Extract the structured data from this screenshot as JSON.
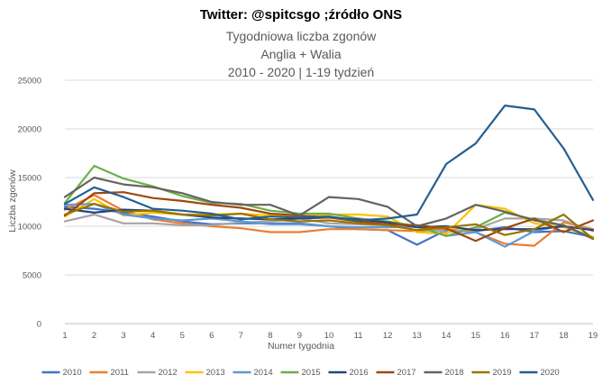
{
  "chart_data": {
    "type": "line",
    "header": "Twitter: @spitcsgo ;źródło ONS",
    "title_lines": [
      "Tygodniowa liczba zgonów",
      "Anglia + Walia",
      "2010 - 2020 | 1-19 tydzień"
    ],
    "xlabel": "Numer tygodnia",
    "ylabel": "Liczba zgonów",
    "x": [
      1,
      2,
      3,
      4,
      5,
      6,
      7,
      8,
      9,
      10,
      11,
      12,
      13,
      14,
      15,
      16,
      17,
      18,
      19
    ],
    "ylim": [
      0,
      25000
    ],
    "yticks": [
      0,
      5000,
      10000,
      15000,
      20000,
      25000
    ],
    "grid": true,
    "legend_position": "bottom",
    "series": [
      {
        "name": "2010",
        "color": "#4472c4",
        "values": [
          12000,
          11800,
          11400,
          11000,
          10500,
          10200,
          10300,
          10300,
          10300,
          10000,
          9700,
          9600,
          8100,
          9600,
          9500,
          9900,
          9400,
          9500,
          8900
        ]
      },
      {
        "name": "2011",
        "color": "#ed7d31",
        "values": [
          11700,
          13200,
          11600,
          10700,
          10300,
          10000,
          9800,
          9400,
          9400,
          9700,
          9700,
          9600,
          9500,
          9700,
          9400,
          8200,
          8000,
          10400,
          9700
        ]
      },
      {
        "name": "2012",
        "color": "#a5a5a5",
        "values": [
          10500,
          11200,
          10300,
          10300,
          10100,
          10100,
          10400,
          10500,
          10800,
          10300,
          10200,
          10100,
          9900,
          9400,
          9700,
          10800,
          10800,
          10600,
          9500
        ]
      },
      {
        "name": "2013",
        "color": "#ffc000",
        "values": [
          11000,
          12800,
          11100,
          11400,
          11200,
          11200,
          11300,
          11100,
          11000,
          11200,
          11200,
          11000,
          9400,
          9200,
          12200,
          11800,
          10300,
          9900,
          8900
        ]
      },
      {
        "name": "2014",
        "color": "#5b9bd5",
        "values": [
          12200,
          12300,
          11200,
          10800,
          10600,
          10800,
          10500,
          10200,
          10200,
          10000,
          9900,
          9900,
          10000,
          9000,
          9400,
          7900,
          9500,
          10100,
          8800
        ]
      },
      {
        "name": "2015",
        "color": "#70ad47",
        "values": [
          12400,
          16200,
          14900,
          14100,
          13100,
          12400,
          12300,
          11600,
          11300,
          11300,
          10800,
          10500,
          10000,
          9000,
          9900,
          11400,
          10700,
          10100,
          8800
        ]
      },
      {
        "name": "2016",
        "color": "#264478",
        "values": [
          11800,
          11400,
          11700,
          11600,
          11200,
          10900,
          10800,
          10700,
          10800,
          10900,
          10700,
          10400,
          9900,
          10000,
          9600,
          9700,
          9700,
          10000,
          9600
        ]
      },
      {
        "name": "2017",
        "color": "#9e480e",
        "values": [
          11100,
          13400,
          13500,
          12900,
          12600,
          12200,
          11900,
          11300,
          11100,
          10900,
          10500,
          10200,
          10100,
          9800,
          8500,
          9800,
          10800,
          9400,
          10600
        ]
      },
      {
        "name": "2018",
        "color": "#636363",
        "values": [
          13000,
          15000,
          14300,
          14000,
          13400,
          12500,
          12200,
          12200,
          11100,
          13000,
          12800,
          12000,
          10000,
          10800,
          12200,
          11500,
          10600,
          10100,
          8700
        ]
      },
      {
        "name": "2019",
        "color": "#997300",
        "values": [
          11200,
          12300,
          11500,
          11600,
          11200,
          11100,
          11300,
          10700,
          10500,
          10600,
          10300,
          10100,
          9600,
          9900,
          10200,
          9100,
          9700,
          11200,
          8700
        ]
      },
      {
        "name": "2020",
        "color": "#255e91",
        "values": [
          12300,
          14000,
          13000,
          11800,
          11600,
          11300,
          10700,
          11000,
          10900,
          11000,
          10600,
          10800,
          11200,
          16400,
          18500,
          22400,
          22000,
          18000,
          12700
        ]
      }
    ]
  }
}
